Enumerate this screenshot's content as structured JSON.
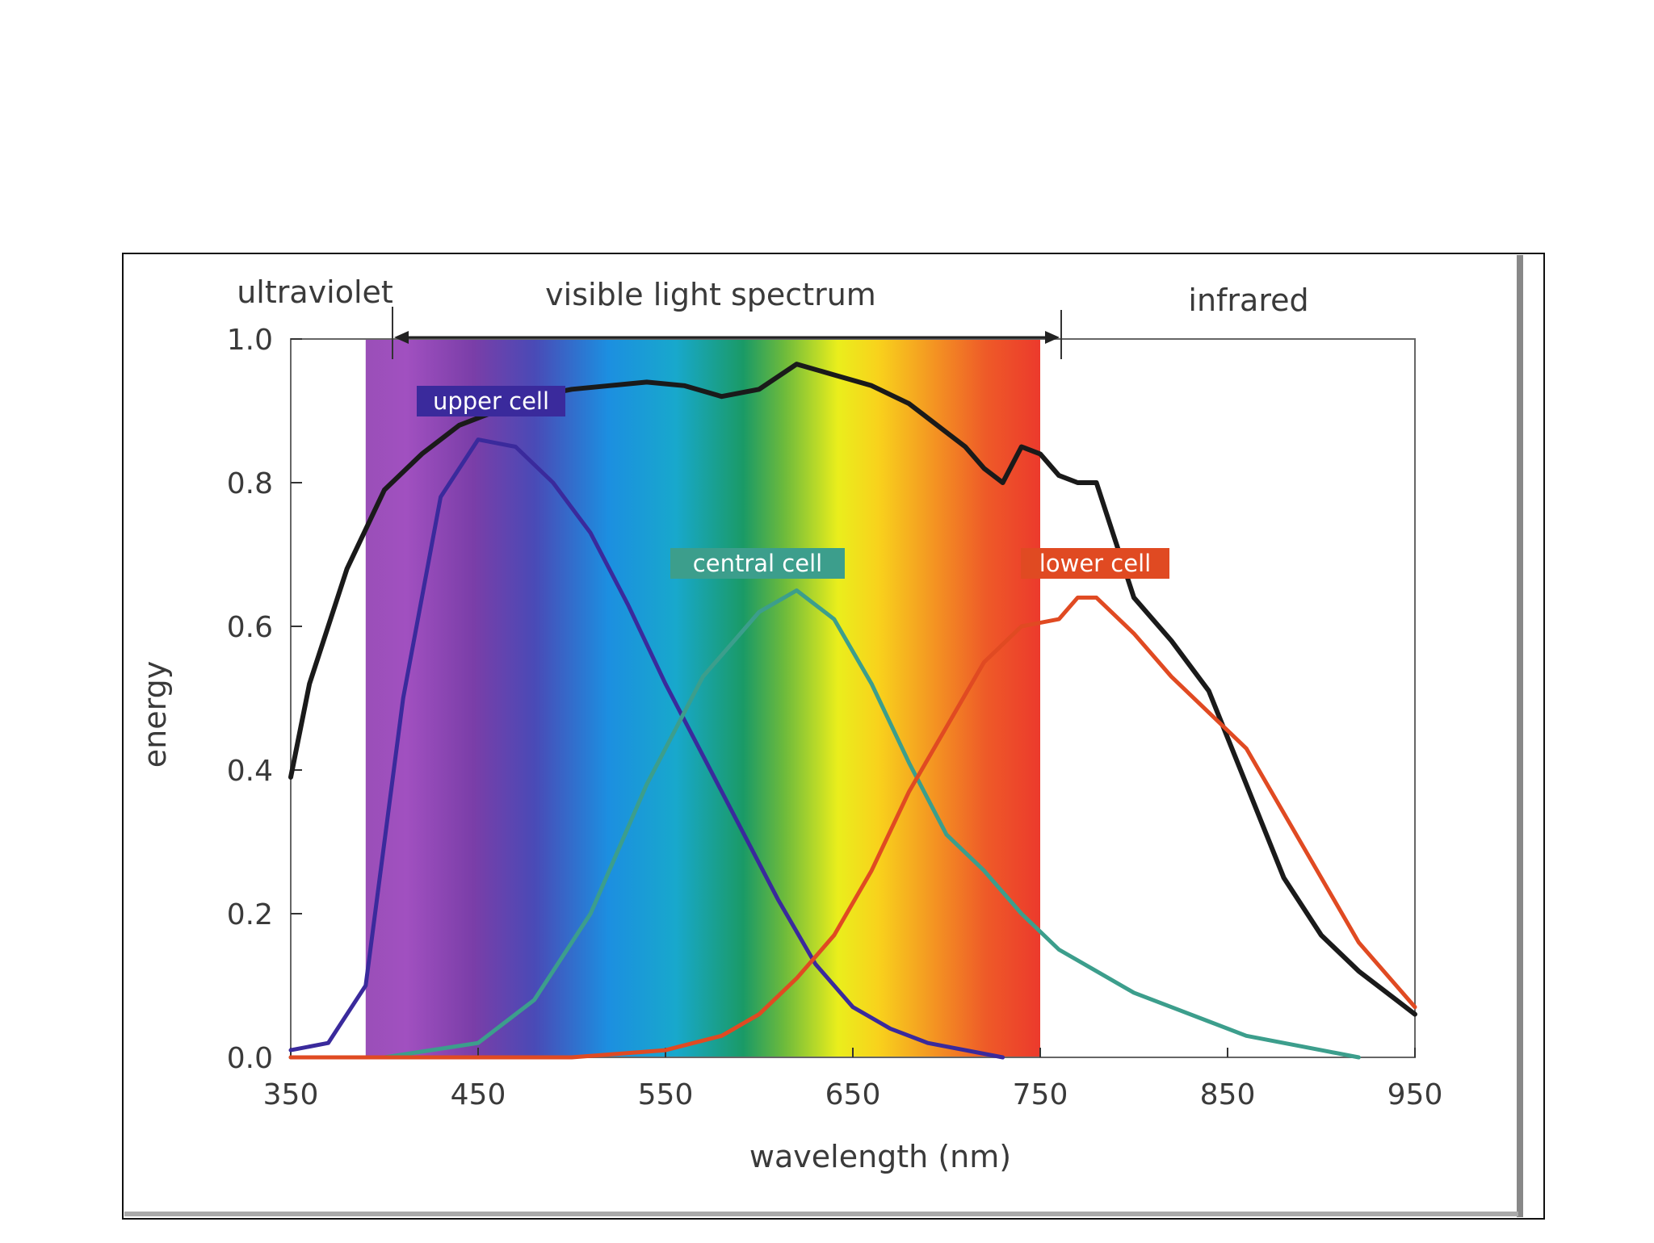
{
  "chart_data": {
    "type": "line",
    "xlabel": "wavelength (nm)",
    "ylabel": "energy",
    "xlim": [
      350,
      950
    ],
    "ylim": [
      0.0,
      1.0
    ],
    "x_ticks": [
      350,
      450,
      550,
      650,
      750,
      850,
      950
    ],
    "y_ticks": [
      0.0,
      0.2,
      0.4,
      0.6,
      0.8,
      1.0
    ],
    "y_tick_labels": [
      "0.0",
      "0.2",
      "0.4",
      "0.6",
      "0.8",
      "1.0"
    ],
    "regions": [
      {
        "name": "ultraviolet",
        "from": 350,
        "to": 410
      },
      {
        "name": "visible light spectrum",
        "from": 410,
        "to": 740
      },
      {
        "name": "infrared",
        "from": 750,
        "to": 950
      }
    ],
    "spectrum_band": [
      390,
      750
    ],
    "series": [
      {
        "name": "",
        "color": "#1a1a1a",
        "x": [
          350,
          360,
          380,
          400,
          420,
          440,
          460,
          480,
          500,
          520,
          540,
          560,
          580,
          600,
          620,
          640,
          660,
          680,
          700,
          710,
          720,
          730,
          740,
          750,
          760,
          770,
          780,
          790,
          800,
          820,
          840,
          860,
          880,
          900,
          920,
          940,
          950
        ],
        "y": [
          0.39,
          0.52,
          0.68,
          0.79,
          0.84,
          0.88,
          0.9,
          0.92,
          0.93,
          0.935,
          0.94,
          0.935,
          0.92,
          0.93,
          0.965,
          0.95,
          0.935,
          0.91,
          0.87,
          0.85,
          0.82,
          0.8,
          0.85,
          0.84,
          0.81,
          0.8,
          0.8,
          0.72,
          0.64,
          0.58,
          0.51,
          0.38,
          0.25,
          0.17,
          0.12,
          0.08,
          0.06
        ]
      },
      {
        "name": "upper cell",
        "color": "#3a2a9c",
        "x": [
          350,
          370,
          390,
          410,
          430,
          450,
          470,
          490,
          510,
          530,
          550,
          570,
          590,
          610,
          630,
          650,
          670,
          690,
          710,
          730
        ],
        "y": [
          0.01,
          0.02,
          0.1,
          0.5,
          0.78,
          0.86,
          0.85,
          0.8,
          0.73,
          0.63,
          0.52,
          0.42,
          0.32,
          0.22,
          0.13,
          0.07,
          0.04,
          0.02,
          0.01,
          0.0
        ]
      },
      {
        "name": "central cell",
        "color": "#3c9e8c",
        "x": [
          350,
          400,
          450,
          480,
          510,
          540,
          570,
          600,
          620,
          640,
          660,
          680,
          700,
          720,
          740,
          760,
          780,
          800,
          820,
          840,
          860,
          880,
          900,
          920
        ],
        "y": [
          0.0,
          0.0,
          0.02,
          0.08,
          0.2,
          0.38,
          0.53,
          0.62,
          0.65,
          0.61,
          0.52,
          0.41,
          0.31,
          0.26,
          0.2,
          0.15,
          0.12,
          0.09,
          0.07,
          0.05,
          0.03,
          0.02,
          0.01,
          0.0
        ]
      },
      {
        "name": "lower cell",
        "color": "#e04a22",
        "x": [
          350,
          500,
          550,
          580,
          600,
          620,
          640,
          660,
          680,
          700,
          720,
          740,
          760,
          770,
          780,
          800,
          820,
          840,
          860,
          880,
          900,
          920,
          940,
          950
        ],
        "y": [
          0.0,
          0.0,
          0.01,
          0.03,
          0.06,
          0.11,
          0.17,
          0.26,
          0.37,
          0.46,
          0.55,
          0.6,
          0.61,
          0.64,
          0.64,
          0.59,
          0.53,
          0.48,
          0.43,
          0.34,
          0.25,
          0.16,
          0.1,
          0.07
        ]
      }
    ]
  }
}
